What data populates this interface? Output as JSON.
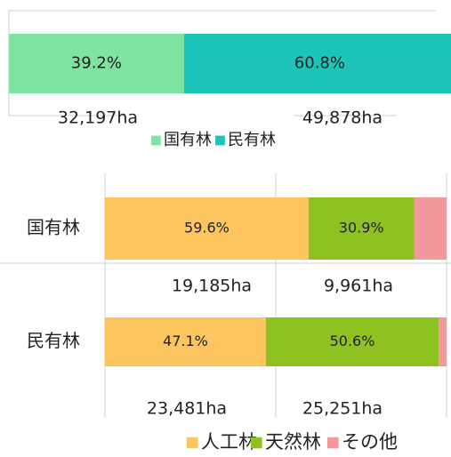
{
  "chart_data": [
    {
      "type": "stacked-bar-horizontal",
      "categories": [
        null
      ],
      "xlim": [
        0,
        100
      ],
      "series": [
        {
          "name": "国有林",
          "color": "#7fe3a2",
          "values": [
            39.2
          ],
          "value_labels": [
            "39.2%"
          ]
        },
        {
          "name": "民有林",
          "color": "#1dc5b9",
          "values": [
            60.8
          ],
          "value_labels": [
            "60.8%"
          ]
        }
      ],
      "annotations": [
        "32,197ha",
        "49,878ha"
      ]
    },
    {
      "type": "stacked-bar-horizontal",
      "categories": [
        "国有林",
        "民有林"
      ],
      "xlim": [
        0,
        100
      ],
      "xticks": [
        0,
        50,
        100
      ],
      "grid": true,
      "series": [
        {
          "name": "人工林",
          "color": "#fdc55f",
          "values": [
            59.6,
            47.1
          ],
          "value_labels": [
            "59.6%",
            "47.1%"
          ]
        },
        {
          "name": "天然林",
          "color": "#8dc220",
          "values": [
            30.9,
            50.6
          ],
          "value_labels": [
            "30.9%",
            "50.6%"
          ]
        },
        {
          "name": "その他",
          "color": "#f4989b",
          "values": [
            9.5,
            2.3
          ]
        }
      ],
      "annotations": [
        "19,185ha",
        "9,961ha",
        "23,481ha",
        "25,251ha"
      ]
    }
  ]
}
